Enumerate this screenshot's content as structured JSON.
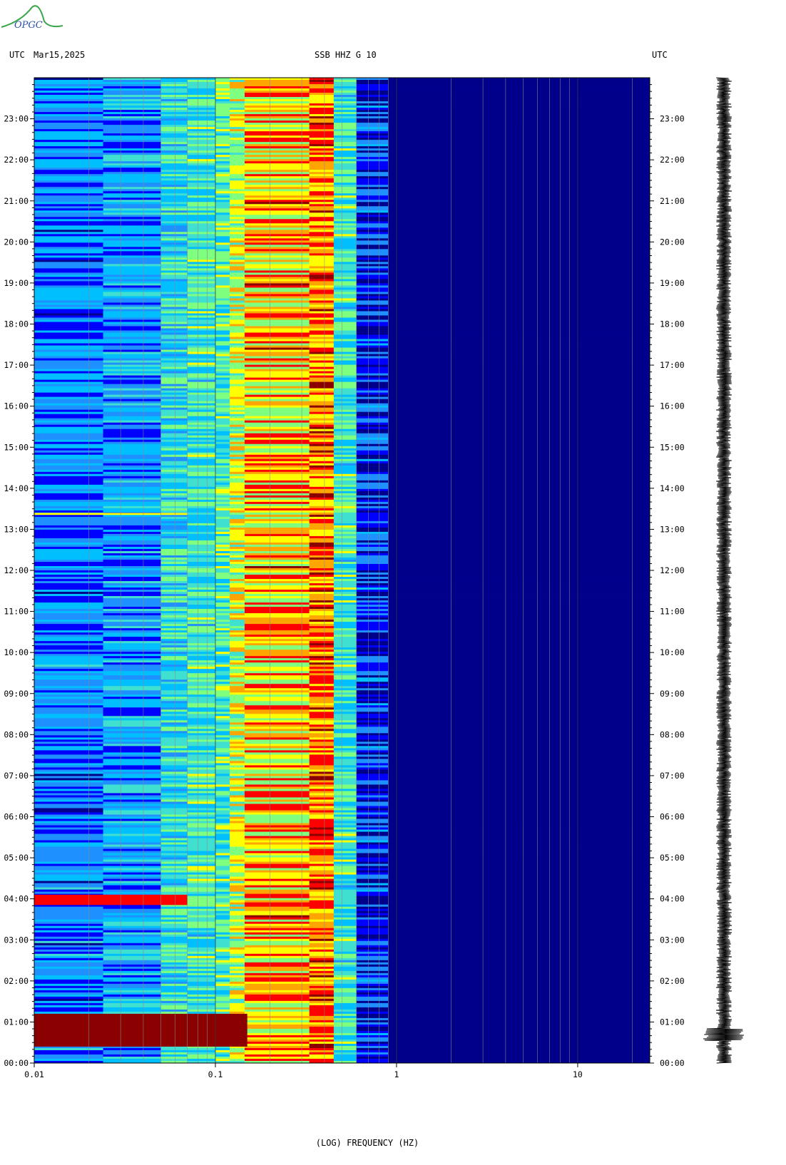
{
  "header": {
    "left_label": "UTC",
    "date": "Mar15,2025",
    "station": "SSB HHZ G 10",
    "right_label": "UTC"
  },
  "logo": {
    "text": "OPGC"
  },
  "chart_data": {
    "type": "heatmap",
    "title": "SSB HHZ G 10",
    "xlabel": "(LOG) FREQUENCY (HZ)",
    "xscale": "log",
    "xlim": [
      0.01,
      25
    ],
    "x_ticks": [
      "0.01",
      "0.1",
      "1",
      "10"
    ],
    "x_tick_values": [
      0.01,
      0.1,
      1,
      10
    ],
    "ylim_hours": [
      0,
      24
    ],
    "y_ticks": [
      "00:00",
      "01:00",
      "02:00",
      "03:00",
      "04:00",
      "05:00",
      "06:00",
      "07:00",
      "08:00",
      "09:00",
      "10:00",
      "11:00",
      "12:00",
      "13:00",
      "14:00",
      "15:00",
      "16:00",
      "17:00",
      "18:00",
      "19:00",
      "20:00",
      "21:00",
      "22:00",
      "23:00"
    ],
    "y_tick_hours": [
      0,
      1,
      2,
      3,
      4,
      5,
      6,
      7,
      8,
      9,
      10,
      11,
      12,
      13,
      14,
      15,
      16,
      17,
      18,
      19,
      20,
      21,
      22,
      23
    ],
    "grid": true,
    "colormap": [
      "#00008b",
      "#0000ff",
      "#1e90ff",
      "#00bfff",
      "#40e0d0",
      "#7fff7f",
      "#ffff00",
      "#ffa500",
      "#ff0000",
      "#8b0000"
    ],
    "band_levels": [
      {
        "f_min": 0.01,
        "f_max": 0.024,
        "level": 0.22
      },
      {
        "f_min": 0.024,
        "f_max": 0.05,
        "level": 0.28
      },
      {
        "f_min": 0.05,
        "f_max": 0.07,
        "level": 0.4
      },
      {
        "f_min": 0.07,
        "f_max": 0.1,
        "level": 0.45
      },
      {
        "f_min": 0.1,
        "f_max": 0.12,
        "level": 0.48
      },
      {
        "f_min": 0.12,
        "f_max": 0.145,
        "level": 0.62
      },
      {
        "f_min": 0.145,
        "f_max": 0.33,
        "level": 0.95
      },
      {
        "f_min": 0.33,
        "f_max": 0.45,
        "level": 0.8
      },
      {
        "f_min": 0.45,
        "f_max": 0.6,
        "level": 0.45
      },
      {
        "f_min": 0.6,
        "f_max": 0.9,
        "level": 0.12
      },
      {
        "f_min": 0.9,
        "f_max": 25,
        "level": 0.02
      }
    ],
    "events": [
      {
        "hour_start": 0.4,
        "hour_end": 1.2,
        "f_max": 0.15,
        "level": 0.95
      },
      {
        "hour_start": 3.85,
        "hour_end": 4.1,
        "f_max": 0.07,
        "level": 0.9
      },
      {
        "hour_start": 13.35,
        "hour_end": 13.4,
        "f_max": 0.07,
        "level": 0.7
      }
    ]
  },
  "trace": {
    "label": "seismogram",
    "event_hour": 0.7
  }
}
